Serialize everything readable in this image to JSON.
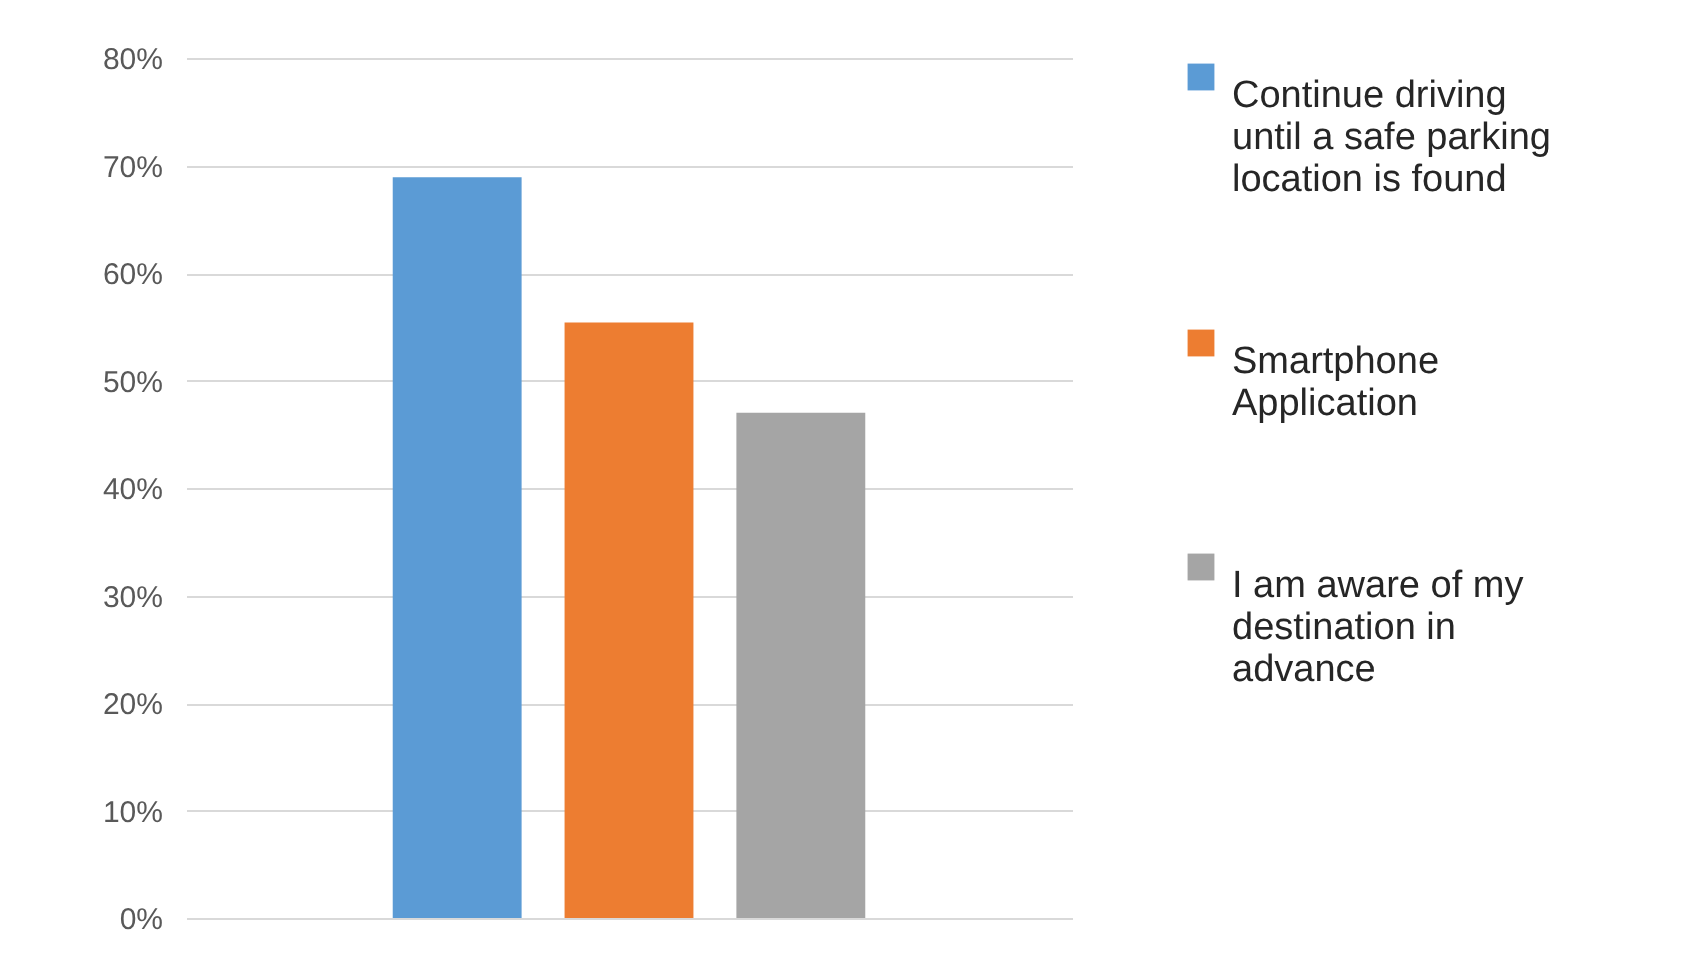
{
  "chart_data": {
    "type": "bar",
    "categories": [
      null
    ],
    "series": [
      {
        "name": "Continue driving until a safe parking location is found",
        "color": "#5b9bd5",
        "values": [
          68.9
        ]
      },
      {
        "name": "Smartphone Application",
        "color": "#ed7d31",
        "values": [
          55.4
        ]
      },
      {
        "name": "I am aware of my destination in advance",
        "color": "#a5a5a5",
        "values": [
          47.0
        ]
      }
    ],
    "ylim": [
      0,
      80
    ],
    "yticks": [
      {
        "value": 0,
        "label": "0%"
      },
      {
        "value": 10,
        "label": "10%"
      },
      {
        "value": 20,
        "label": "20%"
      },
      {
        "value": 30,
        "label": "30%"
      },
      {
        "value": 40,
        "label": "40%"
      },
      {
        "value": 50,
        "label": "50%"
      },
      {
        "value": 60,
        "label": "60%"
      },
      {
        "value": 70,
        "label": "70%"
      },
      {
        "value": 80,
        "label": "80%"
      }
    ],
    "grid": "y",
    "legend": "right"
  }
}
